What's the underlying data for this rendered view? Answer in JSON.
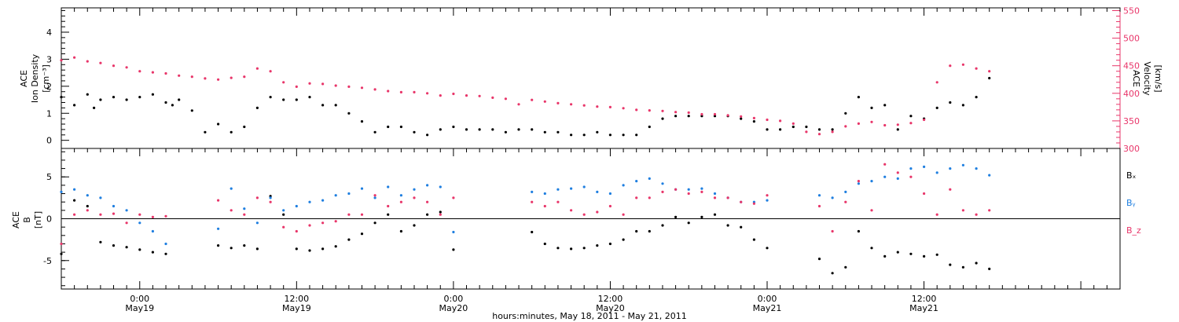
{
  "colors": {
    "density": "#000000",
    "velocity": "#e8366a",
    "bx": "#000000",
    "by": "#1f7fe0",
    "bz": "#e8366a",
    "axis": "#000000"
  },
  "xlabel": "hours:minutes, May 18, 2011 - May 21, 2011",
  "x_ticks": [
    {
      "hour": 6,
      "time": "0:00",
      "date": "May19"
    },
    {
      "hour": 18,
      "time": "12:00",
      "date": "May19"
    },
    {
      "hour": 30,
      "time": "0:00",
      "date": "May20"
    },
    {
      "hour": 42,
      "time": "12:00",
      "date": "May20"
    },
    {
      "hour": 54,
      "time": "0:00",
      "date": "May21"
    },
    {
      "hour": 66,
      "time": "12:00",
      "date": "May21"
    }
  ],
  "chart_data": [
    {
      "type": "scatter",
      "panel": "top",
      "x_range_hours": [
        0,
        81
      ],
      "ylabel_left": [
        "ACE",
        "Ion Density",
        "[cm⁻³]"
      ],
      "ylabel_right": [
        "ACE",
        "Velocity",
        "[km/s]"
      ],
      "ylim_left": [
        -0.3,
        4.9
      ],
      "yticks_left": [
        "0",
        "1",
        "2",
        "3",
        "4"
      ],
      "ylim_right": [
        300,
        555
      ],
      "yticks_right": [
        "300",
        "350",
        "400",
        "450",
        "500",
        "550"
      ],
      "series": [
        {
          "key": "density",
          "axis": "left",
          "color": "#000000",
          "x": [
            0,
            1,
            2,
            2.5,
            3,
            4,
            5,
            6,
            7,
            8,
            8.5,
            9,
            10,
            11,
            12,
            13,
            14,
            15,
            16,
            17,
            18,
            19,
            20,
            21,
            22,
            23,
            24,
            25,
            26,
            27,
            28,
            29,
            30,
            31,
            32,
            33,
            34,
            35,
            36,
            37,
            38,
            39,
            40,
            41,
            42,
            43,
            44,
            45,
            46,
            47,
            48,
            49,
            50,
            51,
            52,
            53,
            54,
            55,
            56,
            57,
            58,
            59,
            60,
            61,
            62,
            63,
            64,
            65,
            66,
            67,
            68,
            69,
            70,
            71
          ],
          "y": [
            1.6,
            1.3,
            1.7,
            1.2,
            1.5,
            1.6,
            1.5,
            1.6,
            1.7,
            1.4,
            1.3,
            1.5,
            1.1,
            0.3,
            0.6,
            0.3,
            0.5,
            1.2,
            1.6,
            1.5,
            1.5,
            1.6,
            1.3,
            1.3,
            1.0,
            0.7,
            0.3,
            0.5,
            0.5,
            0.3,
            0.2,
            0.4,
            0.5,
            0.4,
            0.4,
            0.4,
            0.3,
            0.4,
            0.4,
            0.3,
            0.3,
            0.2,
            0.2,
            0.3,
            0.2,
            0.2,
            0.2,
            0.5,
            0.8,
            0.9,
            0.9,
            0.9,
            0.9,
            0.9,
            0.8,
            0.7,
            0.4,
            0.4,
            0.5,
            0.5,
            0.4,
            0.4,
            1.0,
            1.6,
            1.2,
            1.3,
            0.4,
            0.9,
            0.8,
            1.2,
            1.4,
            1.3,
            1.6,
            2.3
          ]
        },
        {
          "key": "velocity",
          "axis": "right",
          "color": "#e8366a",
          "x": [
            0,
            1,
            2,
            3,
            4,
            5,
            6,
            7,
            8,
            9,
            10,
            11,
            12,
            13,
            14,
            15,
            16,
            17,
            18,
            19,
            20,
            21,
            22,
            23,
            24,
            25,
            26,
            27,
            28,
            29,
            30,
            31,
            32,
            33,
            34,
            35,
            36,
            37,
            38,
            39,
            40,
            41,
            42,
            43,
            44,
            45,
            46,
            47,
            48,
            49,
            50,
            51,
            52,
            53,
            54,
            55,
            56,
            57,
            58,
            59,
            60,
            61,
            62,
            63,
            64,
            65,
            66,
            67,
            68,
            69,
            70,
            71
          ],
          "y": [
            460,
            465,
            458,
            455,
            450,
            447,
            440,
            438,
            436,
            432,
            430,
            427,
            425,
            428,
            430,
            445,
            440,
            420,
            412,
            418,
            417,
            414,
            412,
            410,
            407,
            404,
            402,
            402,
            400,
            396,
            399,
            396,
            395,
            392,
            390,
            380,
            388,
            385,
            382,
            380,
            378,
            376,
            375,
            373,
            370,
            369,
            368,
            366,
            365,
            362,
            362,
            360,
            358,
            355,
            352,
            350,
            345,
            330,
            326,
            330,
            340,
            345,
            348,
            342,
            343,
            346,
            352,
            420,
            450,
            452,
            445,
            440
          ]
        }
      ],
      "gaps_hours": [
        [
          8,
          12
        ],
        [
          32,
          36
        ],
        [
          54,
          58
        ]
      ],
      "grid": false
    },
    {
      "type": "scatter",
      "panel": "bottom",
      "x_range_hours": [
        0,
        81
      ],
      "ylabel": [
        "ACE",
        "B",
        "[nT]"
      ],
      "ylim": [
        -8.4,
        8.4
      ],
      "yticks": [
        "-5",
        "0",
        "5"
      ],
      "zero_line": true,
      "legend_position": "right",
      "series": [
        {
          "key": "bx",
          "name": "Bₓ",
          "color": "#000000",
          "x": [
            0,
            1,
            2,
            3,
            4,
            5,
            6,
            7,
            8,
            12,
            13,
            14,
            15,
            16,
            17,
            18,
            19,
            20,
            21,
            22,
            23,
            24,
            25,
            26,
            27,
            28,
            29,
            30,
            36,
            37,
            38,
            39,
            40,
            41,
            42,
            43,
            44,
            45,
            46,
            47,
            48,
            49,
            50,
            51,
            52,
            53,
            54,
            58,
            59,
            60,
            61,
            62,
            63,
            64,
            65,
            66,
            67,
            68,
            69,
            70,
            71
          ],
          "y": [
            -4.2,
            2.2,
            1.5,
            -2.8,
            -3.2,
            -3.4,
            -3.7,
            -4.0,
            -4.2,
            -3.2,
            -3.5,
            -3.2,
            -3.6,
            2.7,
            0.5,
            -3.6,
            -3.8,
            -3.6,
            -3.3,
            -2.5,
            -1.8,
            -0.5,
            0.5,
            -1.5,
            -0.8,
            0.5,
            0.8,
            -3.7,
            -1.6,
            -3.0,
            -3.5,
            -3.6,
            -3.5,
            -3.2,
            -3.0,
            -2.5,
            -1.5,
            -1.5,
            -0.8,
            0.2,
            -0.5,
            0.2,
            0.5,
            -0.8,
            -1.0,
            -2.5,
            -3.5,
            -4.8,
            -6.5,
            -5.8,
            -1.5,
            -3.5,
            -4.5,
            -4.0,
            -4.2,
            -4.5,
            -4.3,
            -5.5,
            -5.8,
            -5.3,
            -6.0
          ]
        },
        {
          "key": "by",
          "name": "Bᵧ",
          "color": "#1f7fe0",
          "x": [
            0,
            1,
            2,
            3,
            4,
            5,
            6,
            7,
            8,
            12,
            13,
            14,
            15,
            16,
            17,
            18,
            19,
            20,
            21,
            22,
            23,
            24,
            25,
            26,
            27,
            28,
            29,
            30,
            36,
            37,
            38,
            39,
            40,
            41,
            42,
            43,
            44,
            45,
            46,
            47,
            48,
            49,
            50,
            51,
            52,
            53,
            54,
            58,
            59,
            60,
            61,
            62,
            63,
            64,
            65,
            66,
            67,
            68,
            69,
            70,
            71
          ],
          "y": [
            3.2,
            3.5,
            2.8,
            2.5,
            1.5,
            1.0,
            -0.5,
            -1.5,
            -3.0,
            -1.2,
            3.6,
            1.2,
            -0.5,
            2.5,
            1.0,
            1.5,
            2.0,
            2.2,
            2.8,
            3.0,
            3.6,
            2.5,
            3.8,
            2.8,
            3.5,
            4.0,
            3.8,
            -1.6,
            3.2,
            3.0,
            3.5,
            3.6,
            3.8,
            3.2,
            3.0,
            4.0,
            4.5,
            4.8,
            4.2,
            3.5,
            3.5,
            3.6,
            3.0,
            2.5,
            2.0,
            2.0,
            2.2,
            2.8,
            2.5,
            3.2,
            4.2,
            4.5,
            5.0,
            4.8,
            6.0,
            6.2,
            5.5,
            6.0,
            6.4,
            6.0,
            5.2
          ]
        },
        {
          "key": "bz",
          "name": "B_z",
          "color": "#e8366a",
          "x": [
            0,
            1,
            2,
            3,
            4,
            5,
            6,
            7,
            8,
            12,
            13,
            14,
            15,
            16,
            17,
            18,
            19,
            20,
            21,
            22,
            23,
            24,
            25,
            26,
            27,
            28,
            29,
            30,
            36,
            37,
            38,
            39,
            40,
            41,
            42,
            43,
            44,
            45,
            46,
            47,
            48,
            49,
            50,
            51,
            52,
            53,
            54,
            58,
            59,
            60,
            61,
            62,
            63,
            64,
            65,
            66,
            67,
            68,
            69,
            70,
            71
          ],
          "y": [
            -3.0,
            0.5,
            1.0,
            0.5,
            0.6,
            -0.5,
            0.5,
            0.2,
            0.3,
            2.2,
            1.0,
            0.5,
            2.5,
            2.0,
            -1.0,
            -1.5,
            -0.8,
            -0.5,
            -0.3,
            0.5,
            0.5,
            2.8,
            1.5,
            2.0,
            2.5,
            2.0,
            0.5,
            2.5,
            2.0,
            1.5,
            2.0,
            1.0,
            0.5,
            0.8,
            1.5,
            0.5,
            2.5,
            2.5,
            3.2,
            3.5,
            3.0,
            3.2,
            2.5,
            2.5,
            2.0,
            1.8,
            2.8,
            1.5,
            -1.5,
            2.0,
            4.5,
            1.0,
            6.5,
            5.5,
            5.0,
            3.0,
            0.5,
            3.5,
            1.0,
            0.5,
            1.0
          ]
        }
      ],
      "grid": false
    }
  ]
}
